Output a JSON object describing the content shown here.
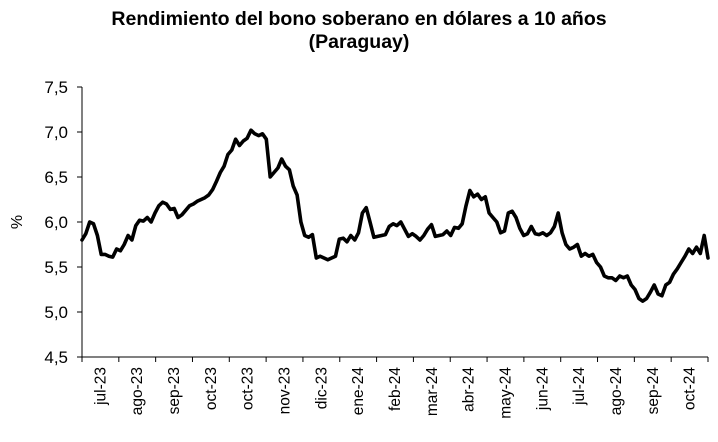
{
  "chart_data": {
    "type": "line",
    "title": "Rendimiento del bono soberano en dólares a 10 años",
    "subtitle": "(Paraguay)",
    "xlabel": "",
    "ylabel": "%",
    "ylim": [
      4.5,
      7.5
    ],
    "yticks": [
      "4,5",
      "5,0",
      "5,5",
      "6,0",
      "6,5",
      "7,0",
      "7,5"
    ],
    "ytick_values": [
      4.5,
      5.0,
      5.5,
      6.0,
      6.5,
      7.0,
      7.5
    ],
    "xticks": [
      "jul-23",
      "ago-23",
      "sep-23",
      "oct-23",
      "oct-23",
      "nov-23",
      "dic-23",
      "ene-24",
      "feb-24",
      "mar-24",
      "abr-24",
      "may-24",
      "jun-24",
      "jul-24",
      "ago-24",
      "sep-24",
      "oct-24"
    ],
    "grid": false,
    "legend": "none",
    "line_color": "#000000",
    "series": [
      {
        "values": [
          5.8,
          5.87,
          6.0,
          5.98,
          5.85,
          5.64,
          5.64,
          5.62,
          5.61,
          5.7,
          5.68,
          5.75,
          5.85,
          5.8,
          5.96,
          6.02,
          6.01,
          6.05,
          6.0,
          6.1,
          6.18,
          6.22,
          6.2,
          6.14,
          6.15,
          6.05,
          6.08,
          6.13,
          6.18,
          6.2,
          6.23,
          6.25,
          6.27,
          6.3,
          6.36,
          6.45,
          6.55,
          6.62,
          6.75,
          6.8,
          6.92,
          6.85,
          6.9,
          6.93,
          7.02,
          6.98,
          6.96,
          6.98,
          6.92,
          6.5,
          6.55,
          6.6,
          6.7,
          6.62,
          6.58,
          6.4,
          6.3,
          6.0,
          5.85,
          5.83,
          5.86,
          5.6,
          5.62,
          5.6,
          5.58,
          5.6,
          5.62,
          5.81,
          5.82,
          5.78,
          5.85,
          5.8,
          5.88,
          6.1,
          6.16,
          6.0,
          5.83,
          5.84,
          5.85,
          5.86,
          5.95,
          5.98,
          5.96,
          6.0,
          5.92,
          5.84,
          5.87,
          5.84,
          5.8,
          5.85,
          5.92,
          5.97,
          5.84,
          5.85,
          5.86,
          5.9,
          5.85,
          5.94,
          5.93,
          5.98,
          6.18,
          6.35,
          6.28,
          6.31,
          6.25,
          6.28,
          6.1,
          6.05,
          6.0,
          5.88,
          5.9,
          6.1,
          6.12,
          6.05,
          5.93,
          5.85,
          5.87,
          5.95,
          5.87,
          5.86,
          5.88,
          5.85,
          5.88,
          5.95,
          6.1,
          5.88,
          5.75,
          5.7,
          5.72,
          5.75,
          5.62,
          5.65,
          5.62,
          5.64,
          5.55,
          5.5,
          5.4,
          5.38,
          5.38,
          5.35,
          5.4,
          5.38,
          5.4,
          5.3,
          5.25,
          5.15,
          5.12,
          5.15,
          5.22,
          5.3,
          5.2,
          5.18,
          5.3,
          5.33,
          5.42,
          5.48,
          5.55,
          5.62,
          5.7,
          5.65,
          5.72,
          5.65,
          5.85,
          5.6
        ]
      }
    ]
  }
}
